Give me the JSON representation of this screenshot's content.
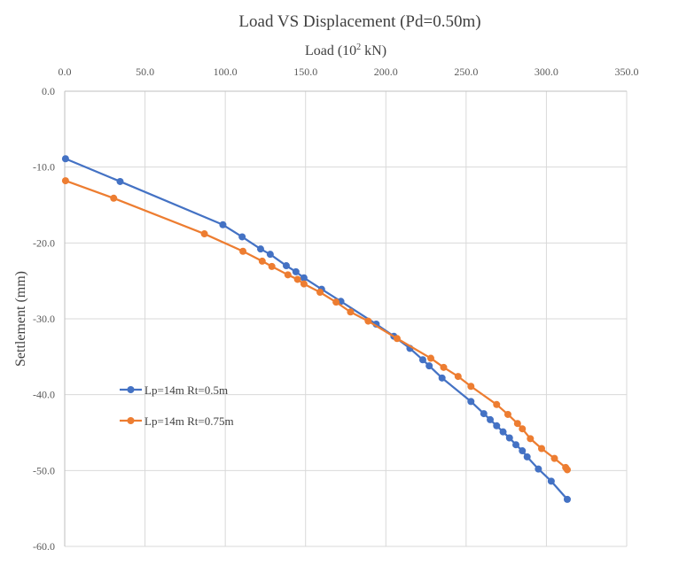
{
  "chart_data": {
    "type": "line",
    "title": "Load VS Displacement  (Pd=0.50m)",
    "xlabel": "Load (10",
    "xlabel_sup": "2",
    "xlabel_unit": " kN)",
    "ylabel": "Settlement (mm)",
    "xlim": [
      0,
      350
    ],
    "ylim": [
      -60,
      0
    ],
    "x_ticks": [
      "0.0",
      "50.0",
      "100.0",
      "150.0",
      "200.0",
      "250.0",
      "300.0",
      "350.0"
    ],
    "y_ticks": [
      "0.0",
      "-10.0",
      "-20.0",
      "-30.0",
      "-40.0",
      "-50.0",
      "-60.0"
    ],
    "x_axis_position": "top",
    "grid": true,
    "legend_position": "left",
    "series": [
      {
        "name": "Lp=14m Rt=0.5m",
        "color": "#4472c4",
        "points": [
          [
            0.5,
            -8.9
          ],
          [
            34.5,
            -11.9
          ],
          [
            98.5,
            -17.6
          ],
          [
            110.5,
            -19.2
          ],
          [
            122,
            -20.8
          ],
          [
            128,
            -21.5
          ],
          [
            138,
            -23.0
          ],
          [
            144,
            -23.8
          ],
          [
            149,
            -24.6
          ],
          [
            160,
            -26.1
          ],
          [
            172,
            -27.7
          ],
          [
            194,
            -30.7
          ],
          [
            205,
            -32.3
          ],
          [
            215,
            -33.9
          ],
          [
            223,
            -35.4
          ],
          [
            227,
            -36.2
          ],
          [
            235,
            -37.8
          ],
          [
            253,
            -40.9
          ],
          [
            261,
            -42.5
          ],
          [
            265,
            -43.3
          ],
          [
            269,
            -44.1
          ],
          [
            273,
            -44.9
          ],
          [
            277,
            -45.7
          ],
          [
            281,
            -46.6
          ],
          [
            285,
            -47.4
          ],
          [
            288,
            -48.2
          ],
          [
            295,
            -49.8
          ],
          [
            303,
            -51.4
          ],
          [
            313,
            -53.8
          ]
        ]
      },
      {
        "name": "Lp=14m Rt=0.75m",
        "color": "#ed7d31",
        "points": [
          [
            0.5,
            -11.8
          ],
          [
            30.5,
            -14.1
          ],
          [
            87,
            -18.8
          ],
          [
            111,
            -21.1
          ],
          [
            123,
            -22.4
          ],
          [
            129,
            -23.1
          ],
          [
            139,
            -24.2
          ],
          [
            145,
            -24.8
          ],
          [
            149,
            -25.4
          ],
          [
            159,
            -26.5
          ],
          [
            169,
            -27.8
          ],
          [
            178,
            -29.1
          ],
          [
            189,
            -30.3
          ],
          [
            207,
            -32.6
          ],
          [
            228,
            -35.2
          ],
          [
            236,
            -36.4
          ],
          [
            245,
            -37.6
          ],
          [
            253,
            -38.9
          ],
          [
            269,
            -41.3
          ],
          [
            276,
            -42.6
          ],
          [
            282,
            -43.8
          ],
          [
            285,
            -44.5
          ],
          [
            290,
            -45.8
          ],
          [
            297,
            -47.1
          ],
          [
            305,
            -48.4
          ],
          [
            312,
            -49.6
          ],
          [
            313,
            -49.9
          ]
        ]
      }
    ]
  }
}
